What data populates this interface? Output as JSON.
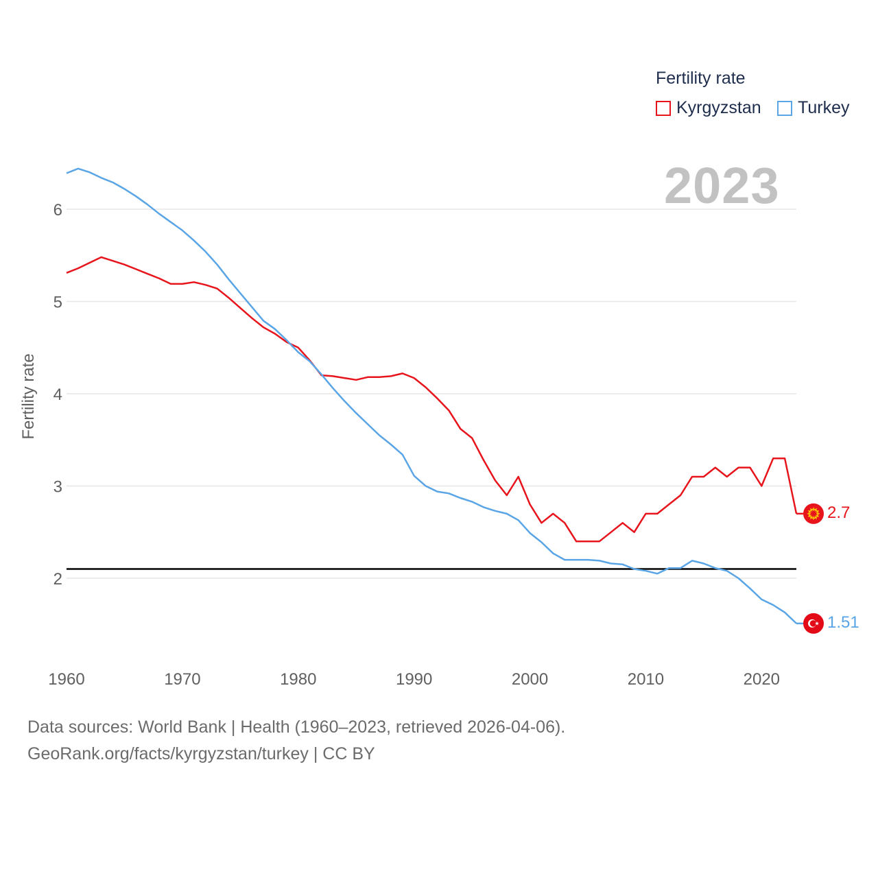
{
  "legend": {
    "title": "Fertility rate",
    "items": [
      {
        "name": "Kyrgyzstan",
        "color": "#e8141c"
      },
      {
        "name": "Turkey",
        "color": "#5aa5e6"
      }
    ]
  },
  "year_watermark": "2023",
  "footer": {
    "line1": "Data sources: World Bank | Health (1960–2023, retrieved 2026-04-06).",
    "line2": "GeoRank.org/facts/kyrgyzstan/turkey | CC BY"
  },
  "end_labels": {
    "kyrgyzstan": {
      "text": "2.7",
      "icon": "kyrgyzstan-flag-icon",
      "color": "#e8141c"
    },
    "turkey": {
      "text": "1.51",
      "icon": "turkey-flag-icon",
      "color": "#5aa5e6"
    }
  },
  "chart_data": {
    "type": "line",
    "title": "",
    "xlabel": "",
    "ylabel": "Fertility rate",
    "xlim": [
      1960,
      2023
    ],
    "ylim": [
      1.2,
      6.6
    ],
    "x_ticks": [
      1960,
      1970,
      1980,
      1990,
      2000,
      2010,
      2020
    ],
    "y_ticks": [
      2,
      3,
      4,
      5,
      6
    ],
    "grid": true,
    "reference_line": {
      "y": 2.1,
      "color": "#000000"
    },
    "x": [
      1960,
      1961,
      1962,
      1963,
      1964,
      1965,
      1966,
      1967,
      1968,
      1969,
      1970,
      1971,
      1972,
      1973,
      1974,
      1975,
      1976,
      1977,
      1978,
      1979,
      1980,
      1981,
      1982,
      1983,
      1984,
      1985,
      1986,
      1987,
      1988,
      1989,
      1990,
      1991,
      1992,
      1993,
      1994,
      1995,
      1996,
      1997,
      1998,
      1999,
      2000,
      2001,
      2002,
      2003,
      2004,
      2005,
      2006,
      2007,
      2008,
      2009,
      2010,
      2011,
      2012,
      2013,
      2014,
      2015,
      2016,
      2017,
      2018,
      2019,
      2020,
      2021,
      2022,
      2023
    ],
    "series": [
      {
        "name": "Kyrgyzstan",
        "color": "#e8141c",
        "values": [
          5.31,
          5.36,
          5.42,
          5.48,
          5.44,
          5.4,
          5.35,
          5.3,
          5.25,
          5.19,
          5.19,
          5.21,
          5.18,
          5.14,
          5.04,
          4.93,
          4.82,
          4.72,
          4.65,
          4.56,
          4.5,
          4.36,
          4.2,
          4.19,
          4.17,
          4.15,
          4.18,
          4.18,
          4.19,
          4.22,
          4.17,
          4.07,
          3.95,
          3.82,
          3.62,
          3.52,
          3.28,
          3.06,
          2.9,
          3.1,
          2.8,
          2.6,
          2.7,
          2.6,
          2.4,
          2.4,
          2.4,
          2.5,
          2.6,
          2.5,
          2.7,
          2.7,
          2.8,
          2.9,
          3.1,
          3.1,
          3.2,
          3.1,
          3.2,
          3.2,
          3.0,
          3.3,
          3.3,
          2.7
        ]
      },
      {
        "name": "Turkey",
        "color": "#5aa5e6",
        "values": [
          6.39,
          6.44,
          6.4,
          6.34,
          6.29,
          6.22,
          6.14,
          6.05,
          5.95,
          5.86,
          5.77,
          5.66,
          5.54,
          5.4,
          5.24,
          5.09,
          4.94,
          4.79,
          4.7,
          4.58,
          4.45,
          4.35,
          4.21,
          4.06,
          3.92,
          3.79,
          3.67,
          3.55,
          3.45,
          3.34,
          3.11,
          3.0,
          2.94,
          2.92,
          2.87,
          2.83,
          2.77,
          2.73,
          2.7,
          2.63,
          2.49,
          2.39,
          2.27,
          2.2,
          2.2,
          2.2,
          2.19,
          2.16,
          2.15,
          2.1,
          2.08,
          2.05,
          2.11,
          2.11,
          2.19,
          2.16,
          2.11,
          2.08,
          2.0,
          1.89,
          1.77,
          1.71,
          1.63,
          1.51
        ]
      }
    ]
  }
}
